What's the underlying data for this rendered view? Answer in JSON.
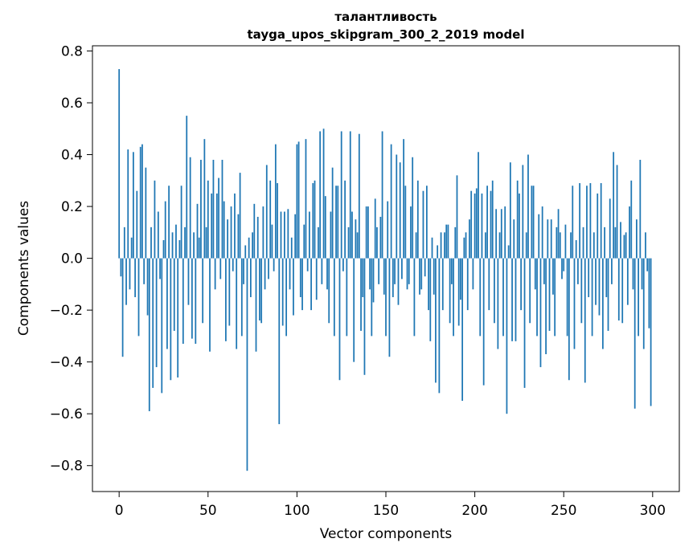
{
  "figure": {
    "title_line1": "талантливость",
    "title_line2": "tayga_upos_skipgram_300_2_2019 model",
    "xlabel": "Vector components",
    "ylabel": "Components values"
  },
  "chart_data": {
    "type": "bar",
    "title": "талантливость\ntayga_upos_skipgram_300_2_2019 model",
    "xlabel": "Vector components",
    "ylabel": "Components values",
    "bar_color": "#1f77b4",
    "xlim": [
      -15,
      315
    ],
    "ylim": [
      -0.9,
      0.82
    ],
    "xticks": [
      0,
      50,
      100,
      150,
      200,
      250,
      300
    ],
    "xtick_labels": [
      "0",
      "50",
      "100",
      "150",
      "200",
      "250",
      "300"
    ],
    "yticks": [
      -0.8,
      -0.6,
      -0.4,
      -0.2,
      0.0,
      0.2,
      0.4,
      0.6,
      0.8
    ],
    "ytick_labels": [
      "−0.8",
      "−0.6",
      "−0.4",
      "−0.2",
      "0.0",
      "0.2",
      "0.4",
      "0.6",
      "0.8"
    ],
    "grid": false,
    "legend": null,
    "values": [
      0.73,
      -0.07,
      -0.38,
      0.12,
      -0.18,
      0.42,
      -0.12,
      0.08,
      0.41,
      -0.15,
      0.26,
      -0.3,
      0.43,
      0.44,
      -0.1,
      0.35,
      -0.22,
      -0.59,
      0.12,
      -0.5,
      0.3,
      -0.42,
      0.18,
      -0.08,
      -0.52,
      0.07,
      0.22,
      -0.35,
      0.28,
      -0.47,
      0.1,
      -0.28,
      0.13,
      -0.46,
      0.07,
      0.28,
      -0.33,
      0.12,
      0.55,
      -0.18,
      0.39,
      -0.31,
      0.1,
      -0.33,
      0.21,
      0.08,
      0.38,
      -0.25,
      0.46,
      0.12,
      0.3,
      -0.36,
      0.25,
      0.38,
      -0.12,
      0.25,
      0.31,
      -0.08,
      0.38,
      0.22,
      -0.32,
      0.15,
      -0.26,
      0.2,
      -0.05,
      0.25,
      -0.35,
      0.17,
      0.33,
      -0.3,
      -0.1,
      0.05,
      -0.82,
      0.08,
      -0.15,
      0.1,
      0.21,
      -0.36,
      0.16,
      -0.24,
      -0.25,
      0.2,
      -0.12,
      0.36,
      -0.08,
      0.3,
      0.13,
      -0.05,
      0.44,
      0.29,
      -0.64,
      0.18,
      -0.26,
      0.18,
      -0.3,
      0.19,
      -0.12,
      0.08,
      -0.22,
      0.17,
      0.44,
      0.45,
      -0.15,
      -0.2,
      0.13,
      0.46,
      -0.05,
      0.18,
      -0.2,
      0.29,
      0.3,
      -0.16,
      0.12,
      0.49,
      -0.1,
      0.5,
      0.24,
      -0.12,
      -0.25,
      0.18,
      0.35,
      -0.3,
      0.28,
      0.28,
      -0.47,
      0.49,
      -0.05,
      0.3,
      -0.3,
      0.12,
      0.49,
      0.18,
      -0.4,
      0.15,
      0.1,
      0.48,
      -0.28,
      -0.15,
      -0.45,
      0.2,
      0.2,
      -0.12,
      -0.3,
      -0.17,
      0.23,
      0.12,
      -0.1,
      0.16,
      0.49,
      -0.14,
      -0.3,
      0.22,
      -0.38,
      0.44,
      -0.15,
      -0.1,
      0.4,
      -0.18,
      0.37,
      -0.08,
      0.46,
      0.28,
      -0.12,
      -0.1,
      0.2,
      0.39,
      -0.3,
      0.1,
      0.3,
      -0.14,
      -0.12,
      0.26,
      -0.07,
      0.28,
      -0.2,
      -0.32,
      0.08,
      -0.14,
      -0.48,
      0.05,
      -0.52,
      0.1,
      -0.2,
      0.1,
      0.13,
      0.13,
      -0.25,
      -0.1,
      -0.3,
      0.12,
      0.32,
      -0.26,
      -0.16,
      -0.55,
      0.08,
      0.1,
      -0.2,
      0.15,
      0.26,
      -0.12,
      0.25,
      0.27,
      0.41,
      -0.3,
      0.25,
      -0.49,
      0.1,
      0.28,
      -0.2,
      0.26,
      0.3,
      -0.25,
      0.19,
      -0.35,
      0.1,
      0.19,
      -0.3,
      0.2,
      -0.6,
      0.05,
      0.37,
      -0.32,
      0.15,
      -0.32,
      0.3,
      0.25,
      -0.2,
      0.36,
      -0.5,
      0.1,
      0.4,
      -0.25,
      0.28,
      0.28,
      -0.12,
      -0.3,
      0.17,
      -0.42,
      0.2,
      -0.1,
      -0.37,
      0.15,
      -0.28,
      0.15,
      -0.14,
      -0.3,
      0.12,
      0.19,
      0.1,
      -0.08,
      -0.05,
      0.13,
      -0.3,
      -0.47,
      0.1,
      0.28,
      -0.35,
      0.07,
      -0.1,
      0.29,
      -0.25,
      0.12,
      -0.48,
      0.28,
      -0.15,
      0.29,
      -0.3,
      0.1,
      -0.18,
      0.25,
      -0.22,
      0.29,
      -0.35,
      0.12,
      -0.15,
      -0.28,
      0.23,
      -0.1,
      0.41,
      0.12,
      0.36,
      -0.24,
      0.14,
      -0.25,
      0.09,
      0.1,
      -0.18,
      0.2,
      0.3,
      -0.12,
      -0.58,
      0.15,
      -0.3,
      0.38,
      -0.12,
      -0.35,
      0.1,
      -0.05,
      -0.27,
      -0.57
    ]
  }
}
